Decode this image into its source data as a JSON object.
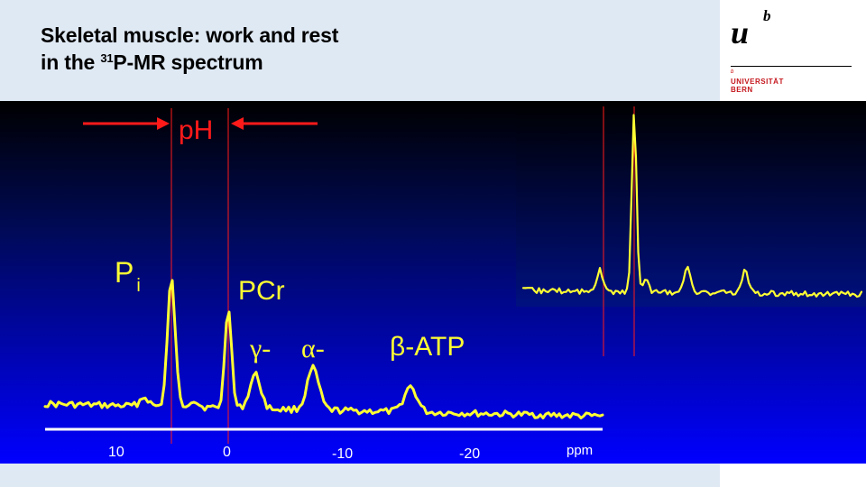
{
  "slide": {
    "title_line1": "Skeletal muscle: work and rest",
    "title_line2_prefix": "in the ",
    "title_line2_sup": "31",
    "title_line2_suffix": "P-MR spectrum"
  },
  "logo": {
    "mark": "u",
    "mark_sup": "b",
    "small_b": "b",
    "line1": "UNIVERSITÄT",
    "line2": "BERN"
  },
  "spectrum": {
    "ph_label": "pH",
    "peaks": {
      "pi_main": "P",
      "pi_sub": "i",
      "pcr": "PCr",
      "gamma": "γ-",
      "alpha": "α-",
      "beta": "β-ATP"
    },
    "axis": {
      "ticks": [
        "10",
        "0",
        "-10",
        "-20"
      ],
      "unit": "ppm"
    }
  },
  "colors": {
    "band": "#dfe9f4",
    "panel_top": "#000000",
    "panel_bottom": "#0000ff",
    "trace": "#ffff33",
    "marker": "#ff1a1a",
    "logo_red": "#c4161c"
  }
}
